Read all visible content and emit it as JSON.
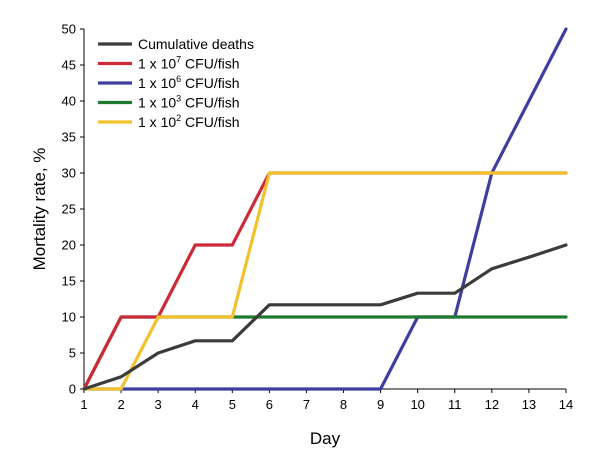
{
  "chart_data": {
    "type": "line",
    "title": "",
    "xlabel": "Day",
    "ylabel": "Mortality rate, %",
    "x": [
      1,
      2,
      3,
      4,
      5,
      6,
      7,
      8,
      9,
      10,
      11,
      12,
      13,
      14
    ],
    "xlim": [
      1,
      14
    ],
    "ylim": [
      0,
      50
    ],
    "x_ticks": [
      1,
      2,
      3,
      4,
      5,
      6,
      7,
      8,
      9,
      10,
      11,
      12,
      13,
      14
    ],
    "y_ticks": [
      0,
      5,
      10,
      15,
      20,
      25,
      30,
      35,
      40,
      45,
      50
    ],
    "grid": false,
    "legend_position": "top-left",
    "series": [
      {
        "name": "Cumulative deaths",
        "legend_base": "Cumulative deaths",
        "legend_sup": "",
        "legend_suffix": "",
        "color": "#3c3c3c",
        "values": [
          0,
          1.7,
          5,
          6.7,
          6.7,
          11.7,
          11.7,
          11.7,
          11.7,
          13.3,
          13.3,
          16.7,
          18.3,
          20
        ]
      },
      {
        "name": "1 x 10^7 CFU/fish",
        "legend_base": "1 x 10",
        "legend_sup": "7",
        "legend_suffix": " CFU/fish",
        "color": "#cc2a36",
        "values": [
          0,
          10,
          10,
          20,
          20,
          30,
          30,
          30,
          30,
          30,
          30,
          30,
          30,
          30
        ]
      },
      {
        "name": "1 x 10^6 CFU/fish",
        "legend_base": "1 x 10",
        "legend_sup": "6",
        "legend_suffix": " CFU/fish",
        "color": "#3d3fa0",
        "values": [
          0,
          0,
          0,
          0,
          0,
          0,
          0,
          0,
          0,
          10,
          10,
          30,
          40,
          50
        ]
      },
      {
        "name": "1 x 10^3 CFU/fish",
        "legend_base": "1 x 10",
        "legend_sup": "3",
        "legend_suffix": " CFU/fish",
        "color": "#1e7a2e",
        "values": [
          0,
          10,
          10,
          10,
          10,
          10,
          10,
          10,
          10,
          10,
          10,
          10,
          10,
          10
        ]
      },
      {
        "name": "1 x 10^2 CFU/fish",
        "legend_base": "1 x 10",
        "legend_sup": "2",
        "legend_suffix": " CFU/fish",
        "color": "#f2c12e",
        "values": [
          0,
          0,
          10,
          10,
          10,
          30,
          30,
          30,
          30,
          30,
          30,
          30,
          30,
          30
        ]
      }
    ]
  }
}
